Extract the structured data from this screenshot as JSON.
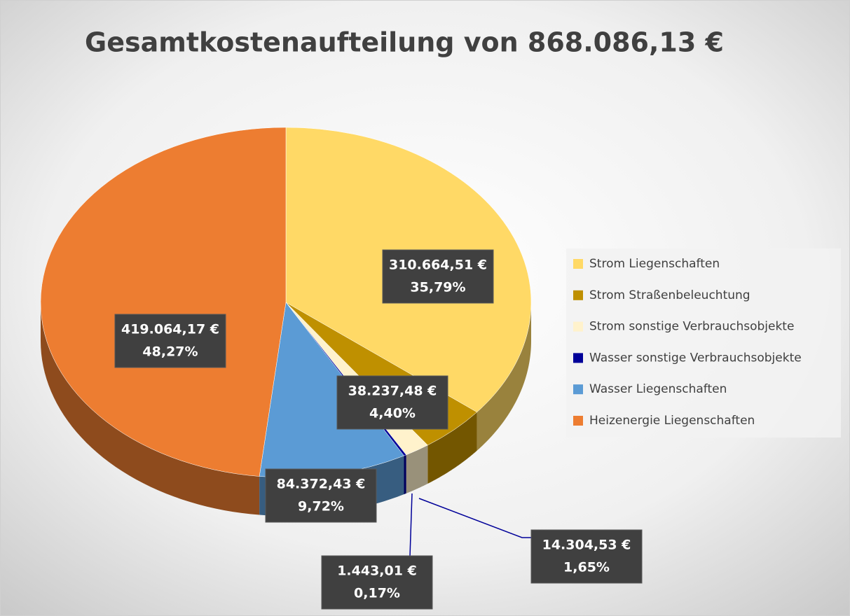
{
  "chart_data": {
    "type": "pie3d",
    "title": "Gesamtkostenaufteilung von 868.086,13 €",
    "categories": [
      "Strom Liegenschaften",
      "Strom Straßenbeleuchtung",
      "Strom sonstige Verbrauchsobjekte",
      "Wasser sonstige Verbrauchsobjekte",
      "Wasser Liegenschaften",
      "Heizenergie Liegenschaften"
    ],
    "values": [
      310664.51,
      38237.48,
      14304.53,
      1443.01,
      84372.43,
      419064.17
    ],
    "value_labels": [
      "310.664,51 €",
      "38.237,48 €",
      "14.304,53 €",
      "1.443,01 €",
      "84.372,43 €",
      "419.064,17 €"
    ],
    "percentages": [
      35.79,
      4.4,
      1.65,
      0.17,
      9.72,
      48.27
    ],
    "percentage_labels": [
      "35,79%",
      "4,40%",
      "1,65%",
      "0,17%",
      "9,72%",
      "48,27%"
    ],
    "colors": [
      "#ffd966",
      "#bf9000",
      "#fff2cc",
      "#000099",
      "#5b9bd5",
      "#ed7d31"
    ],
    "legend": "right"
  }
}
